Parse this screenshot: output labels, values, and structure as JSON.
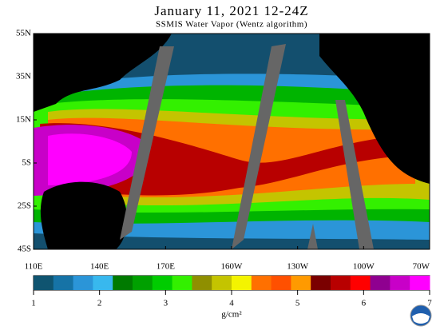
{
  "header": {
    "title": "January 11, 2021  12-24Z",
    "subtitle": "SSMIS Water Vapor (Wentz algorithm)"
  },
  "map": {
    "lat_ticks": [
      {
        "value": 55,
        "label": "55N"
      },
      {
        "value": 35,
        "label": "35N"
      },
      {
        "value": 15,
        "label": "15N"
      },
      {
        "value": -5,
        "label": "5S"
      },
      {
        "value": -25,
        "label": "25S"
      },
      {
        "value": -45,
        "label": "45S"
      }
    ],
    "lon_ticks": [
      {
        "value": 110,
        "label": "110E"
      },
      {
        "value": 140,
        "label": "140E"
      },
      {
        "value": 170,
        "label": "170E"
      },
      {
        "value": 200,
        "label": "160W"
      },
      {
        "value": 230,
        "label": "130W"
      },
      {
        "value": 260,
        "label": "100W"
      },
      {
        "value": 290,
        "label": "70W"
      }
    ]
  },
  "colorbar": {
    "range": [
      1,
      7
    ],
    "ticks": [
      1,
      2,
      3,
      4,
      5,
      6,
      7
    ],
    "unit": "g/cm²",
    "colors": [
      "#0f5470",
      "#1673a6",
      "#2b95d8",
      "#38b8ee",
      "#007a00",
      "#00a000",
      "#00cc00",
      "#33f000",
      "#8f8f00",
      "#c4c400",
      "#f4f400",
      "#ff7000",
      "#ff5000",
      "#ff9a00",
      "#7a0000",
      "#b80000",
      "#ff0000",
      "#8f0090",
      "#c800c8",
      "#ff00ff"
    ]
  }
}
